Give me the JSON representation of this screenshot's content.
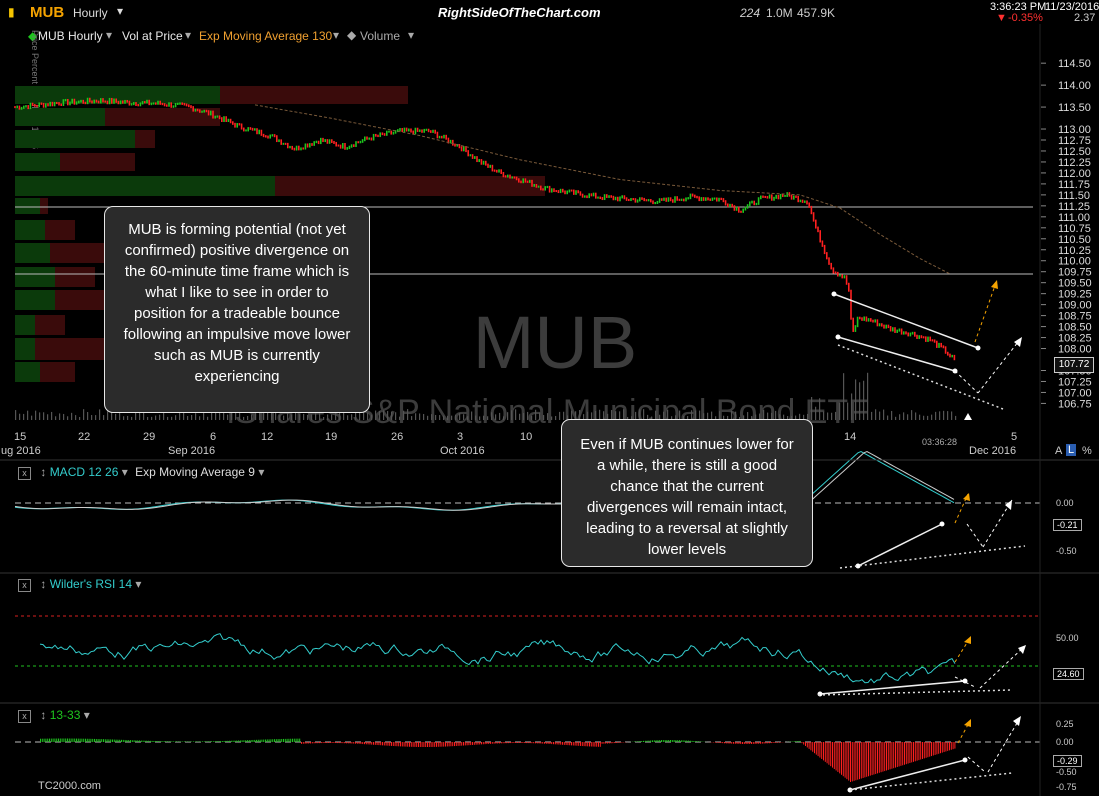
{
  "header": {
    "ticker": "MUB",
    "interval": "Hourly",
    "site": "RightSideOfTheChart.com",
    "stat_a": "224",
    "stat_b": "1.0M",
    "stat_c": "457.9K",
    "time": "3:36:23 PM",
    "date": "11/23/2016",
    "change": "-0.35%",
    "change_val": "2.37"
  },
  "legend": {
    "series1": "MUB Hourly",
    "series2": "Vol at Price",
    "series3": "Exp Moving Average 130",
    "series4": "Volume",
    "left_label": "Price Percent Oscillator 12 26"
  },
  "watermark": {
    "ticker": "MUB",
    "name": "iShares S&P National Municipal Bond ETF"
  },
  "callouts": {
    "left": "MUB is forming potential (not yet confirmed) positive divergence on the 60-minute time frame which is what I like to see in order to position for a tradeable bounce following an impulsive move lower such as MUB is currently experiencing",
    "right": "Even if MUB continues lower for a while, there is still a good chance that the current divergences will remain intact, leading to a reversal at slightly lower levels"
  },
  "panels": {
    "macd": {
      "title": "MACD 12 26",
      "signal": "Exp Moving Average 9",
      "ticks": [
        "0.00",
        "-0.21",
        "-0.50"
      ]
    },
    "rsi": {
      "title": "Wilder's RSI 14",
      "ticks": [
        "50.00",
        "24.60"
      ]
    },
    "osc": {
      "title": "13-33",
      "ticks": [
        "0.25",
        "0.00",
        "-0.29",
        "-0.50",
        "-0.75"
      ]
    }
  },
  "xaxis": {
    "days": [
      "15",
      "22",
      "29",
      "6",
      "12",
      "19",
      "26",
      "3",
      "10",
      "14",
      "5"
    ],
    "months": [
      "ug 2016",
      "Sep 2016",
      "Oct 2016",
      "Dec 2016"
    ],
    "cursor_time": "03:36:28",
    "scale_buttons": [
      "A",
      "L",
      "%"
    ]
  },
  "footer": "TC2000.com",
  "chart_data": {
    "type": "line",
    "title": "MUB Hourly",
    "yaxis_ticks": [
      "114.50",
      "114.00",
      "113.50",
      "113.00",
      "112.75",
      "112.50",
      "112.25",
      "112.00",
      "111.75",
      "111.50",
      "111.25",
      "111.00",
      "110.75",
      "110.50",
      "110.25",
      "110.00",
      "109.75",
      "109.50",
      "109.25",
      "109.00",
      "108.75",
      "108.50",
      "108.25",
      "108.00",
      "107.72",
      "107.50",
      "107.25",
      "107.00",
      "106.75"
    ],
    "last_price": "107.72",
    "ylim": [
      106.6,
      114.8
    ],
    "price_path": [
      {
        "x": 15,
        "y": 113.5
      },
      {
        "x": 40,
        "y": 113.55
      },
      {
        "x": 60,
        "y": 113.6
      },
      {
        "x": 80,
        "y": 113.62
      },
      {
        "x": 100,
        "y": 113.65
      },
      {
        "x": 130,
        "y": 113.6
      },
      {
        "x": 160,
        "y": 113.58
      },
      {
        "x": 190,
        "y": 113.5
      },
      {
        "x": 210,
        "y": 113.35
      },
      {
        "x": 240,
        "y": 113.05
      },
      {
        "x": 270,
        "y": 112.85
      },
      {
        "x": 295,
        "y": 112.55
      },
      {
        "x": 320,
        "y": 112.75
      },
      {
        "x": 345,
        "y": 112.6
      },
      {
        "x": 370,
        "y": 112.8
      },
      {
        "x": 400,
        "y": 112.95
      },
      {
        "x": 430,
        "y": 112.95
      },
      {
        "x": 460,
        "y": 112.6
      },
      {
        "x": 480,
        "y": 112.25
      },
      {
        "x": 500,
        "y": 112.0
      },
      {
        "x": 520,
        "y": 111.85
      },
      {
        "x": 545,
        "y": 111.65
      },
      {
        "x": 570,
        "y": 111.55
      },
      {
        "x": 600,
        "y": 111.45
      },
      {
        "x": 630,
        "y": 111.4
      },
      {
        "x": 660,
        "y": 111.35
      },
      {
        "x": 690,
        "y": 111.45
      },
      {
        "x": 720,
        "y": 111.4
      },
      {
        "x": 740,
        "y": 111.15
      },
      {
        "x": 760,
        "y": 111.4
      },
      {
        "x": 785,
        "y": 111.5
      },
      {
        "x": 808,
        "y": 111.35
      },
      {
        "x": 815,
        "y": 110.8
      },
      {
        "x": 825,
        "y": 110.2
      },
      {
        "x": 832,
        "y": 109.8
      },
      {
        "x": 845,
        "y": 109.6
      },
      {
        "x": 849,
        "y": 109.3
      },
      {
        "x": 852,
        "y": 108.3
      },
      {
        "x": 858,
        "y": 108.7
      },
      {
        "x": 870,
        "y": 108.65
      },
      {
        "x": 890,
        "y": 108.45
      },
      {
        "x": 910,
        "y": 108.35
      },
      {
        "x": 930,
        "y": 108.2
      },
      {
        "x": 945,
        "y": 107.95
      },
      {
        "x": 955,
        "y": 107.72
      }
    ],
    "ema_path": [
      {
        "x": 255,
        "y": 113.55
      },
      {
        "x": 330,
        "y": 113.25
      },
      {
        "x": 420,
        "y": 112.85
      },
      {
        "x": 520,
        "y": 112.3
      },
      {
        "x": 620,
        "y": 111.85
      },
      {
        "x": 720,
        "y": 111.6
      },
      {
        "x": 800,
        "y": 111.5
      },
      {
        "x": 840,
        "y": 111.2
      },
      {
        "x": 880,
        "y": 110.6
      },
      {
        "x": 920,
        "y": 110.05
      },
      {
        "x": 950,
        "y": 109.7
      }
    ]
  }
}
